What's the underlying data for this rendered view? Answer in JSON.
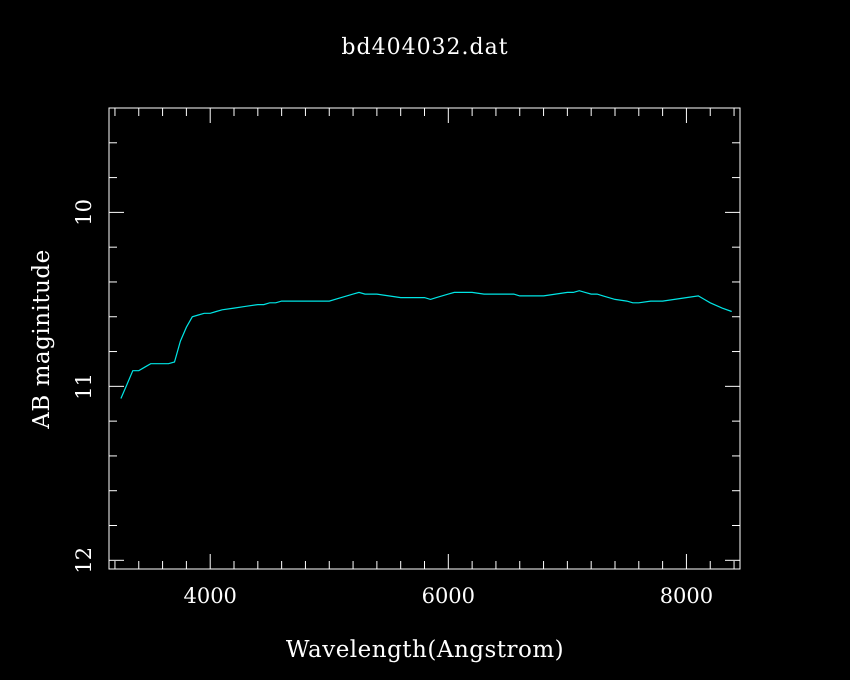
{
  "chart_data": {
    "type": "line",
    "title": "bd404032.dat",
    "xlabel": "Wavelength(Angstrom)",
    "ylabel": "AB maginitude",
    "xlim": [
      3150,
      8450
    ],
    "ylim": [
      9.4,
      12.05
    ],
    "y_inverted": true,
    "x_ticks": [
      4000,
      6000,
      8000
    ],
    "x_minor_step": 200,
    "y_ticks": [
      10,
      11,
      12
    ],
    "y_minor_step": 0.2,
    "grid": false,
    "background_color": "#000000",
    "axis_color": "#ffffff",
    "series": [
      {
        "color": "#00e5e5",
        "x": [
          3250,
          3300,
          3350,
          3400,
          3450,
          3500,
          3550,
          3600,
          3650,
          3700,
          3750,
          3800,
          3850,
          3900,
          3950,
          4000,
          4050,
          4100,
          4200,
          4300,
          4400,
          4450,
          4500,
          4550,
          4600,
          4700,
          4800,
          4900,
          5000,
          5100,
          5200,
          5250,
          5300,
          5400,
          5500,
          5600,
          5700,
          5800,
          5850,
          5900,
          6000,
          6050,
          6100,
          6200,
          6300,
          6400,
          6500,
          6550,
          6600,
          6700,
          6800,
          6900,
          7000,
          7050,
          7100,
          7150,
          7200,
          7250,
          7300,
          7400,
          7500,
          7550,
          7600,
          7700,
          7800,
          7900,
          8000,
          8100,
          8150,
          8200,
          8300,
          8380
        ],
        "y": [
          11.07,
          10.99,
          10.91,
          10.91,
          10.89,
          10.87,
          10.87,
          10.87,
          10.87,
          10.86,
          10.74,
          10.66,
          10.6,
          10.59,
          10.58,
          10.58,
          10.57,
          10.56,
          10.55,
          10.54,
          10.53,
          10.53,
          10.52,
          10.52,
          10.51,
          10.51,
          10.51,
          10.51,
          10.51,
          10.49,
          10.47,
          10.46,
          10.47,
          10.47,
          10.48,
          10.49,
          10.49,
          10.49,
          10.5,
          10.49,
          10.47,
          10.46,
          10.46,
          10.46,
          10.47,
          10.47,
          10.47,
          10.47,
          10.48,
          10.48,
          10.48,
          10.47,
          10.46,
          10.46,
          10.45,
          10.46,
          10.47,
          10.47,
          10.48,
          10.5,
          10.51,
          10.52,
          10.52,
          10.51,
          10.51,
          10.5,
          10.49,
          10.48,
          10.5,
          10.52,
          10.55,
          10.57
        ]
      }
    ]
  }
}
